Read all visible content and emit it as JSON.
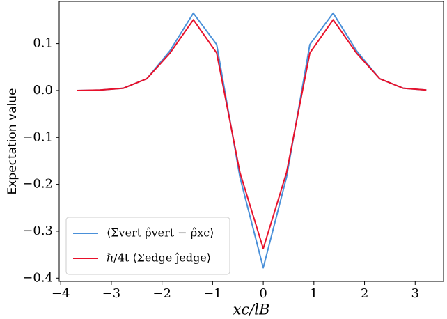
{
  "chart_data": {
    "type": "line",
    "xlabel": "xc/lB",
    "ylabel": "Expectation value",
    "x": [
      -3.68,
      -3.22,
      -2.76,
      -2.3,
      -1.84,
      -1.38,
      -0.92,
      -0.46,
      0,
      0.46,
      0.92,
      1.38,
      1.84,
      2.3,
      2.76,
      3.22
    ],
    "series": [
      {
        "name": "⟨Σvert ρ̂vert − ρ̂xc⟩",
        "color": "#4a90d9",
        "values": [
          0.0,
          0.001,
          0.005,
          0.025,
          0.085,
          0.165,
          0.098,
          -0.185,
          -0.378,
          -0.185,
          0.098,
          0.165,
          0.085,
          0.025,
          0.005,
          0.001
        ]
      },
      {
        "name": "ℏ/4t ⟨Σedge ĵedge⟩",
        "color": "#e8102a",
        "values": [
          0.0,
          0.001,
          0.005,
          0.025,
          0.08,
          0.151,
          0.08,
          -0.175,
          -0.337,
          -0.175,
          0.08,
          0.151,
          0.08,
          0.025,
          0.005,
          0.001
        ]
      }
    ],
    "xlim": [
      -4.03,
      3.56
    ],
    "ylim": [
      -0.407,
      0.19
    ],
    "xticks": [
      {
        "value": -4,
        "label": "−4"
      },
      {
        "value": -3,
        "label": "−3"
      },
      {
        "value": -2,
        "label": "−2"
      },
      {
        "value": -1,
        "label": "−1"
      },
      0,
      1,
      2,
      3
    ],
    "yticks": [
      {
        "value": -0.4,
        "label": "−0.4"
      },
      {
        "value": -0.3,
        "label": "−0.3"
      },
      {
        "value": -0.2,
        "label": "−0.2"
      },
      {
        "value": -0.1,
        "label": "−0.1"
      },
      {
        "value": 0,
        "label": "0.0"
      },
      {
        "value": 0.1,
        "label": "0.1"
      }
    ],
    "legend": "lower left",
    "grid": false
  }
}
